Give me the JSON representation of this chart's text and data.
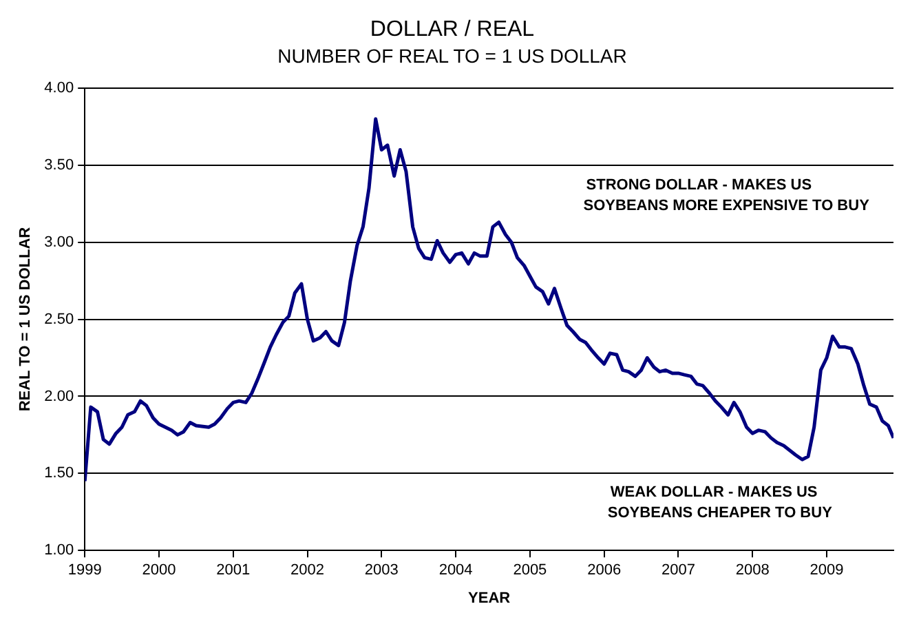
{
  "chart_data": {
    "type": "line",
    "title": "DOLLAR / REAL",
    "subtitle": "NUMBER OF REAL TO = 1 US DOLLAR",
    "xlabel": "YEAR",
    "ylabel": "REAL TO = 1 US DOLLAR",
    "x": [
      1999.0,
      1999.08,
      1999.17,
      1999.25,
      1999.33,
      1999.42,
      1999.5,
      1999.58,
      1999.67,
      1999.75,
      1999.83,
      1999.92,
      2000.0,
      2000.17,
      2000.25,
      2000.33,
      2000.42,
      2000.5,
      2000.67,
      2000.75,
      2000.83,
      2000.92,
      2001.0,
      2001.08,
      2001.17,
      2001.25,
      2001.33,
      2001.42,
      2001.5,
      2001.58,
      2001.67,
      2001.75,
      2001.83,
      2001.92,
      2002.0,
      2002.08,
      2002.17,
      2002.25,
      2002.33,
      2002.42,
      2002.5,
      2002.58,
      2002.67,
      2002.75,
      2002.83,
      2002.92,
      2003.0,
      2003.08,
      2003.17,
      2003.25,
      2003.33,
      2003.42,
      2003.5,
      2003.58,
      2003.67,
      2003.75,
      2003.83,
      2003.92,
      2004.0,
      2004.08,
      2004.17,
      2004.25,
      2004.33,
      2004.42,
      2004.5,
      2004.58,
      2004.67,
      2004.75,
      2004.83,
      2004.92,
      2005.0,
      2005.08,
      2005.17,
      2005.25,
      2005.33,
      2005.42,
      2005.5,
      2005.58,
      2005.67,
      2005.75,
      2005.83,
      2005.92,
      2006.0,
      2006.08,
      2006.17,
      2006.25,
      2006.33,
      2006.42,
      2006.5,
      2006.58,
      2006.67,
      2006.75,
      2006.83,
      2006.92,
      2007.0,
      2007.08,
      2007.17,
      2007.25,
      2007.33,
      2007.42,
      2007.5,
      2007.58,
      2007.67,
      2007.75,
      2007.83,
      2007.92,
      2008.0,
      2008.08,
      2008.17,
      2008.25,
      2008.33,
      2008.42,
      2008.5,
      2008.58,
      2008.67,
      2008.75,
      2008.83,
      2008.92,
      2009.0,
      2009.08,
      2009.17,
      2009.25,
      2009.33,
      2009.42,
      2009.5,
      2009.58,
      2009.67,
      2009.75,
      2009.83,
      2009.9
    ],
    "series": [
      {
        "color": "#000080",
        "values": [
          1.45,
          1.93,
          1.9,
          1.72,
          1.69,
          1.76,
          1.8,
          1.88,
          1.9,
          1.97,
          1.94,
          1.86,
          1.82,
          1.78,
          1.75,
          1.77,
          1.83,
          1.81,
          1.8,
          1.82,
          1.86,
          1.92,
          1.96,
          1.97,
          1.96,
          2.02,
          2.11,
          2.22,
          2.32,
          2.4,
          2.48,
          2.52,
          2.67,
          2.73,
          2.5,
          2.36,
          2.38,
          2.42,
          2.36,
          2.33,
          2.48,
          2.75,
          2.98,
          3.1,
          3.35,
          3.8,
          3.6,
          3.63,
          3.43,
          3.6,
          3.46,
          3.1,
          2.96,
          2.9,
          2.89,
          3.01,
          2.93,
          2.87,
          2.92,
          2.93,
          2.86,
          2.93,
          2.91,
          2.91,
          3.1,
          3.13,
          3.05,
          3.0,
          2.9,
          2.85,
          2.78,
          2.71,
          2.68,
          2.6,
          2.7,
          2.57,
          2.46,
          2.42,
          2.37,
          2.35,
          2.3,
          2.25,
          2.21,
          2.28,
          2.27,
          2.17,
          2.16,
          2.13,
          2.17,
          2.25,
          2.19,
          2.16,
          2.17,
          2.15,
          2.15,
          2.14,
          2.13,
          2.08,
          2.07,
          2.02,
          1.97,
          1.93,
          1.88,
          1.96,
          1.9,
          1.8,
          1.76,
          1.78,
          1.77,
          1.73,
          1.7,
          1.68,
          1.65,
          1.62,
          1.59,
          1.61,
          1.8,
          2.17,
          2.25,
          2.39,
          2.32,
          2.32,
          2.31,
          2.21,
          2.07,
          1.95,
          1.93,
          1.84,
          1.81,
          1.73
        ]
      }
    ],
    "xlim": [
      1999,
      2009.9
    ],
    "xticks": [
      1999,
      2000,
      2001,
      2002,
      2003,
      2004,
      2005,
      2006,
      2007,
      2008,
      2009
    ],
    "ylim": [
      1,
      4
    ],
    "yticks": [
      {
        "value": 1,
        "label": "1.00"
      },
      {
        "value": 1.5,
        "label": "1.50"
      },
      {
        "value": 2,
        "label": "2.00"
      },
      {
        "value": 2.5,
        "label": "2.50"
      },
      {
        "value": 3,
        "label": "3.00"
      },
      {
        "value": 3.5,
        "label": "3.50"
      },
      {
        "value": 4,
        "label": "4.00"
      }
    ],
    "grid": "y",
    "legend": false,
    "marker": "none",
    "line_style": "solid",
    "annotations": [
      "STRONG DOLLAR - MAKES US\nSOYBEANS MORE EXPENSIVE TO BUY",
      "WEAK DOLLAR - MAKES US\nSOYBEANS CHEAPER TO BUY"
    ]
  }
}
